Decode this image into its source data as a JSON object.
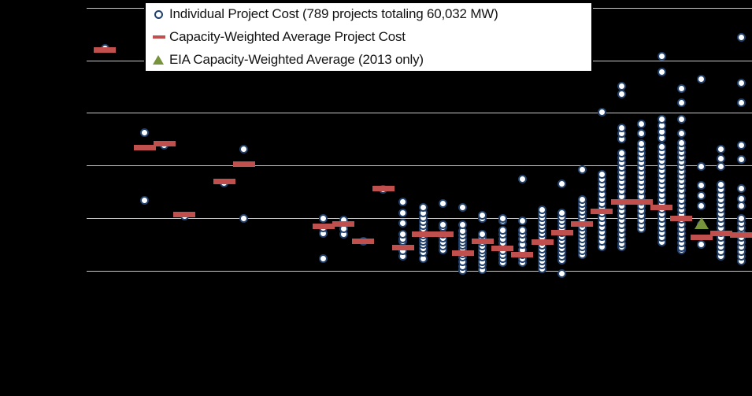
{
  "colors": {
    "background": "#000000",
    "gridline": "#c8c8c8",
    "circle_outline": "#21406b",
    "circle_fill": "#ffffff",
    "average_dash": "#c0504d",
    "eia_triangle": "#77933c",
    "legend_bg": "#ffffff",
    "legend_border": "#000000",
    "legend_text": "#141414"
  },
  "chart_data": {
    "type": "scatter",
    "title": "",
    "unit": "$/kW",
    "legend_position": "top-left-inside",
    "grid": true,
    "legend": [
      {
        "marker": "circle-outline",
        "label": "Individual Project Cost (789 projects totaling 60,032 MW)"
      },
      {
        "marker": "red-dash",
        "label": "Capacity-Weighted Average Project Cost"
      },
      {
        "marker": "green-triangle",
        "label": "EIA Capacity-Weighted Average (2013 only)"
      }
    ],
    "x_axis": {
      "first_year": 1983,
      "last_year": 2015,
      "tick_labels_visible": false
    },
    "y_axis": {
      "min": 0,
      "max": 6000,
      "gridlines": [
        1000,
        2000,
        3000,
        4000,
        5000,
        6000
      ],
      "tick_labels_visible": false
    },
    "eia_point": {
      "year": 2013,
      "value": 1910
    },
    "series": [
      {
        "year": 1983,
        "avg": 5210,
        "projects": [
          5240
        ]
      },
      {
        "year": 1985,
        "avg": 3340,
        "projects": [
          3625,
          2350
        ]
      },
      {
        "year": 1986,
        "avg": 3415,
        "projects": [
          3385
        ]
      },
      {
        "year": 1987,
        "avg": 2080,
        "projects": [
          2050
        ]
      },
      {
        "year": 1989,
        "avg": 2695,
        "projects": [
          2665
        ]
      },
      {
        "year": 1990,
        "avg": 3025,
        "projects": [
          3310,
          2005
        ]
      },
      {
        "year": 1994,
        "avg": 1855,
        "projects": [
          2005,
          1825,
          1720,
          1240
        ]
      },
      {
        "year": 1995,
        "avg": 1900,
        "projects": [
          1975,
          1810,
          1705
        ]
      },
      {
        "year": 1996,
        "avg": 1570,
        "projects": [
          1570
        ]
      },
      {
        "year": 1997,
        "avg": 2560,
        "projects": [
          2545
        ]
      },
      {
        "year": 1998,
        "avg": 1450,
        "projects": [
          2320,
          2110,
          1915,
          1705,
          1615,
          1570,
          1390,
          1285
        ]
      },
      {
        "year": 1999,
        "avg": 1705,
        "projects": [
          2215,
          2110,
          2020,
          1945,
          1870,
          1810,
          1750,
          1690,
          1630,
          1570,
          1510,
          1435,
          1360,
          1240
        ]
      },
      {
        "year": 2000,
        "avg": 1705,
        "projects": [
          2290,
          1885,
          1840,
          1705,
          1630,
          1555,
          1480,
          1405
        ]
      },
      {
        "year": 2001,
        "avg": 1345,
        "projects": [
          2215,
          1885,
          1765,
          1690,
          1615,
          1555,
          1495,
          1435,
          1390,
          1330,
          1270,
          1180,
          1090,
          1015
        ]
      },
      {
        "year": 2002,
        "avg": 1570,
        "projects": [
          2065,
          2005,
          1705,
          1630,
          1555,
          1480,
          1405,
          1345,
          1270,
          1180,
          1120,
          1030
        ]
      },
      {
        "year": 2003,
        "avg": 1435,
        "projects": [
          2005,
          1960,
          1780,
          1705,
          1615,
          1540,
          1465,
          1390,
          1315,
          1240,
          1165
        ]
      },
      {
        "year": 2004,
        "avg": 1315,
        "projects": [
          2740,
          1960,
          1780,
          1705,
          1615,
          1510,
          1405,
          1315,
          1240,
          1165
        ]
      },
      {
        "year": 2005,
        "avg": 1555,
        "projects": [
          2170,
          2095,
          2020,
          1945,
          1870,
          1795,
          1720,
          1645,
          1570,
          1495,
          1420,
          1345,
          1270,
          1195,
          1120,
          1045
        ]
      },
      {
        "year": 2006,
        "avg": 1735,
        "projects": [
          2650,
          2110,
          2035,
          1960,
          1885,
          1810,
          1735,
          1660,
          1585,
          1510,
          1435,
          1360,
          1285,
          1210,
          955
        ]
      },
      {
        "year": 2007,
        "avg": 1900,
        "projects": [
          2920,
          2365,
          2290,
          2215,
          2140,
          2065,
          1990,
          1915,
          1840,
          1765,
          1690,
          1615,
          1540,
          1465,
          1390,
          1315
        ]
      },
      {
        "year": 2008,
        "avg": 2140,
        "projects": [
          4015,
          2830,
          2740,
          2650,
          2560,
          2470,
          2380,
          2290,
          2200,
          2110,
          2020,
          1930,
          1840,
          1750,
          1660,
          1570,
          1465
        ]
      },
      {
        "year": 2009,
        "avg": 2320,
        "projects": [
          4510,
          4360,
          3715,
          3610,
          3505,
          3235,
          3145,
          3055,
          2965,
          2875,
          2785,
          2695,
          2605,
          2515,
          2425,
          2335,
          2245,
          2155,
          2065,
          1975,
          1885,
          1795,
          1705,
          1615,
          1525,
          1465
        ]
      },
      {
        "year": 2010,
        "avg": 2320,
        "projects": [
          3790,
          3610,
          3415,
          3325,
          3235,
          3145,
          3055,
          2965,
          2875,
          2785,
          2695,
          2605,
          2515,
          2425,
          2335,
          2245,
          2155,
          2065,
          1975,
          1885,
          1810
        ]
      },
      {
        "year": 2011,
        "avg": 2215,
        "projects": [
          5090,
          4780,
          3880,
          3760,
          3640,
          3520,
          3355,
          3265,
          3175,
          3085,
          2995,
          2905,
          2815,
          2725,
          2635,
          2545,
          2455,
          2365,
          2275,
          2185,
          2095,
          2005,
          1915,
          1825,
          1735,
          1645,
          1555
        ]
      },
      {
        "year": 2012,
        "avg": 2005,
        "projects": [
          4465,
          4195,
          3880,
          3610,
          3430,
          3340,
          3250,
          3160,
          3070,
          2980,
          2890,
          2800,
          2710,
          2620,
          2530,
          2440,
          2350,
          2260,
          2170,
          2080,
          1990,
          1900,
          1810,
          1720,
          1630,
          1540,
          1450,
          1405
        ]
      },
      {
        "year": 2013,
        "avg": 1645,
        "projects": [
          4645,
          2980,
          2620,
          2440,
          2245,
          1885,
          1510
        ]
      },
      {
        "year": 2014,
        "avg": 1720,
        "projects": [
          3310,
          3130,
          2980,
          2635,
          2545,
          2455,
          2365,
          2275,
          2185,
          2095,
          2005,
          1915,
          1825,
          1735,
          1645,
          1555,
          1465,
          1375,
          1285
        ]
      },
      {
        "year": 2015,
        "avg": 1690,
        "projects": [
          5440,
          4570,
          4195,
          3385,
          3115,
          2560,
          2380,
          2245,
          2005,
          1915,
          1825,
          1735,
          1645,
          1555,
          1465,
          1375,
          1285,
          1195
        ]
      }
    ]
  }
}
